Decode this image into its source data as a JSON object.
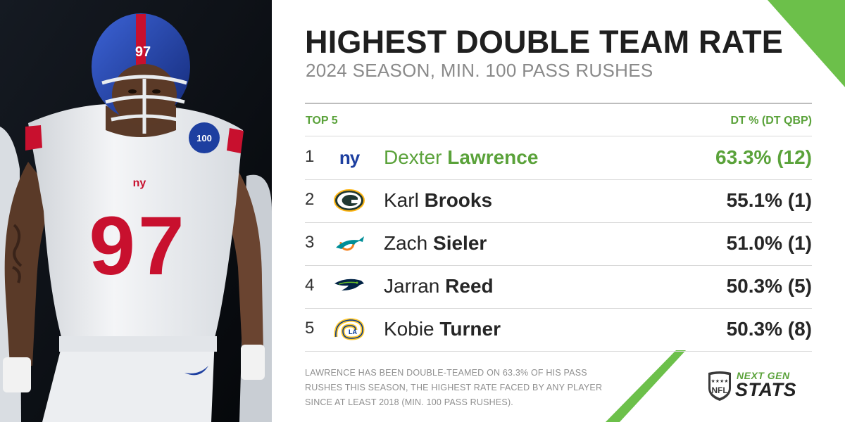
{
  "title": "HIGHEST DOUBLE TEAM RATE",
  "subtitle": "2024 SEASON, MIN. 100 PASS RUSHES",
  "table": {
    "left_header": "TOP 5",
    "right_header": "DT % (DT QBP)",
    "rows": [
      {
        "rank": "1",
        "first": "Dexter",
        "last": "Lawrence",
        "value": "63.3% (12)",
        "team_logo": "giants-logo"
      },
      {
        "rank": "2",
        "first": "Karl",
        "last": "Brooks",
        "value": "55.1% (1)",
        "team_logo": "packers-logo"
      },
      {
        "rank": "3",
        "first": "Zach",
        "last": "Sieler",
        "value": "51.0% (1)",
        "team_logo": "dolphins-logo"
      },
      {
        "rank": "4",
        "first": "Jarran",
        "last": "Reed",
        "value": "50.3% (5)",
        "team_logo": "seahawks-logo"
      },
      {
        "rank": "5",
        "first": "Kobie",
        "last": "Turner",
        "value": "50.3% (8)",
        "team_logo": "rams-logo"
      }
    ]
  },
  "footnote": "LAWRENCE HAS BEEN DOUBLE-TEAMED ON 63.3% OF HIS PASS RUSHES THIS SEASON, THE HIGHEST RATE FACED BY ANY PLAYER SINCE AT LEAST 2018 (MIN. 100 PASS RUSHES).",
  "branding": {
    "shield_text": "NFL",
    "next_gen": "NEXT GEN",
    "stats": "STATS"
  },
  "photo": {
    "jersey_number": "97",
    "helmet_number": "97",
    "patch_text": "100",
    "chest_logo": "ny"
  },
  "colors": {
    "accent_green": "#5aa23a",
    "giants_blue": "#1d3fa0",
    "giants_red": "#c8102e"
  }
}
